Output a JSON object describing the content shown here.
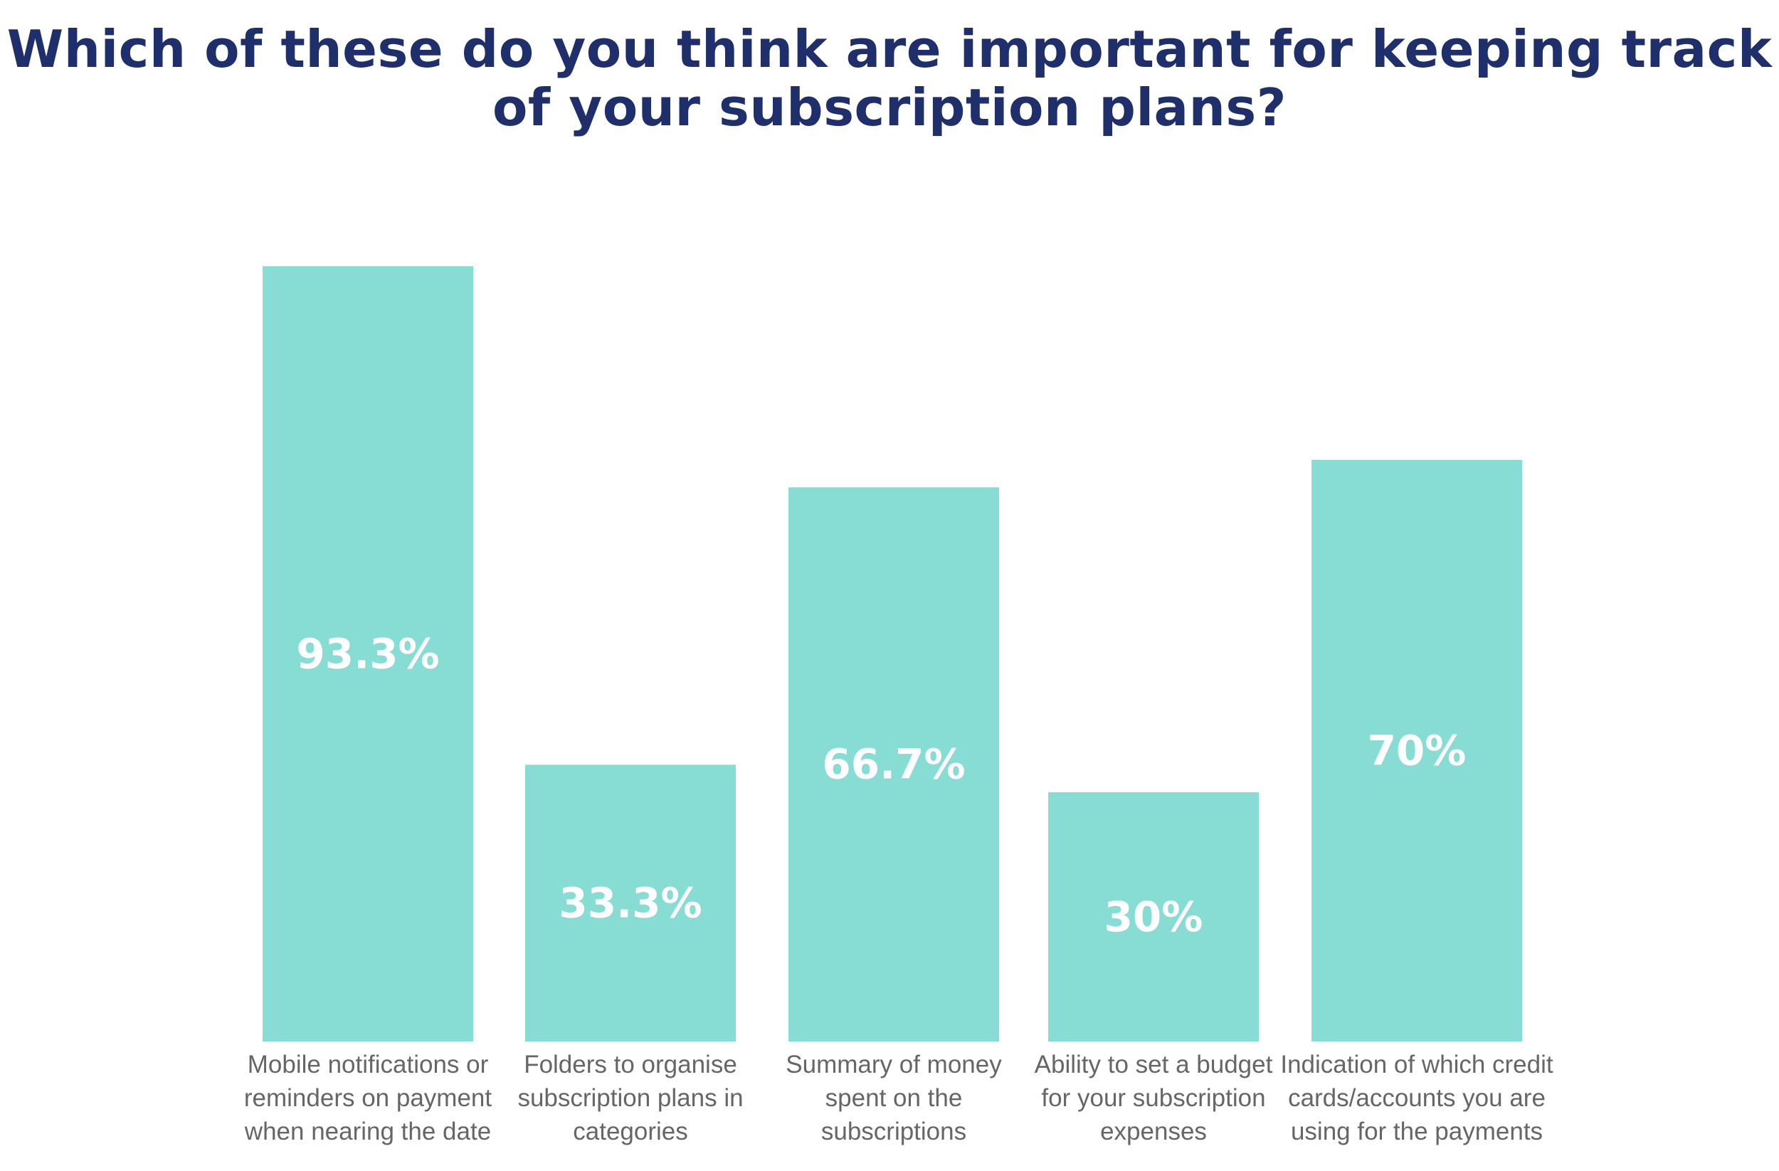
{
  "chart_data": {
    "type": "bar",
    "title_lines": [
      "Which of these do you think are important for keeping track",
      "of your subscription plans?"
    ],
    "categories": [
      [
        "Mobile notifications or",
        "reminders on payment",
        "when nearing the date"
      ],
      [
        "Folders to organise",
        "subscription plans in",
        "categories"
      ],
      [
        "Summary of money",
        "spent on the",
        "subscriptions"
      ],
      [
        "Ability to set a budget",
        "for your subscription",
        "expenses"
      ],
      [
        "Indication of which credit",
        "cards/accounts you are",
        "using for the payments"
      ]
    ],
    "values": [
      93.3,
      33.3,
      66.7,
      30,
      70
    ],
    "value_labels": [
      "93.3%",
      "33.3%",
      "66.7%",
      "30%",
      "70%"
    ],
    "unit": "%",
    "ylim": [
      0,
      100
    ],
    "grid": false,
    "legend": "none",
    "colors": {
      "bar": "#87ddd4",
      "title": "#1f2f6b",
      "value_text": "#ffffff",
      "label_text": "#666666"
    }
  }
}
